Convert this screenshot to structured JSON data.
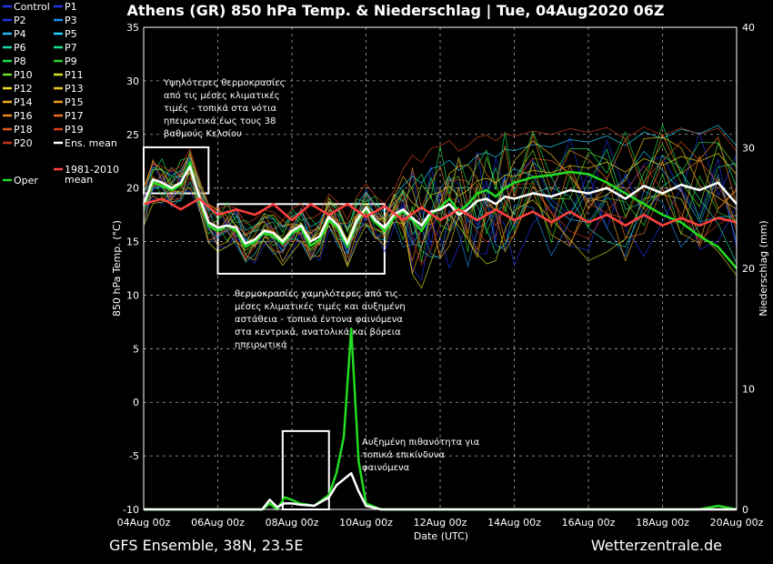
{
  "chart_data": {
    "type": "line",
    "title": "Athens  (GR)  850 hPa Temp. & Niederschlag | Tue, 04Aug2020 06Z",
    "ylabel": "850 hPa Temp. (°C)",
    "y2label": "Niederschlag (mm)",
    "xlabel": "Date (UTC)",
    "ylim": [
      -10,
      35
    ],
    "y2lim": [
      0,
      40
    ],
    "xlim": [
      0,
      16
    ],
    "grid": true,
    "legend_position": "left",
    "yticks": [
      35,
      30,
      25,
      20,
      15,
      10,
      5,
      0,
      -5,
      -10
    ],
    "y2ticks": [
      40,
      30,
      20,
      10,
      0
    ],
    "xticks": [
      {
        "x": 0,
        "label": "04Aug 00z"
      },
      {
        "x": 2,
        "label": "06Aug 00z"
      },
      {
        "x": 4,
        "label": "08Aug 00z"
      },
      {
        "x": 6,
        "label": "10Aug 00z"
      },
      {
        "x": 8,
        "label": "12Aug 00z"
      },
      {
        "x": 10,
        "label": "14Aug 00z"
      },
      {
        "x": 12,
        "label": "16Aug 00z"
      },
      {
        "x": 14,
        "label": "18Aug 00z"
      },
      {
        "x": 16,
        "label": "20Aug 00z"
      }
    ],
    "legend": [
      {
        "name": "Control",
        "color": "#1f35e6"
      },
      {
        "name": "P1",
        "color": "#1f35e6"
      },
      {
        "name": "P2",
        "color": "#1f35e6"
      },
      {
        "name": "P3",
        "color": "#1f8cf0"
      },
      {
        "name": "P4",
        "color": "#1fb8ff"
      },
      {
        "name": "P5",
        "color": "#1fd8ff"
      },
      {
        "name": "P6",
        "color": "#1fd8b0"
      },
      {
        "name": "P7",
        "color": "#1fe090"
      },
      {
        "name": "P8",
        "color": "#1fe050"
      },
      {
        "name": "P9",
        "color": "#2ad02a"
      },
      {
        "name": "P10",
        "color": "#6ae02a"
      },
      {
        "name": "P11",
        "color": "#d8e01f"
      },
      {
        "name": "P12",
        "color": "#f0e01f"
      },
      {
        "name": "P13",
        "color": "#f0c81f"
      },
      {
        "name": "P14",
        "color": "#f0b01f"
      },
      {
        "name": "P15",
        "color": "#f09a1f"
      },
      {
        "name": "P16",
        "color": "#f0861f"
      },
      {
        "name": "P17",
        "color": "#f0701f"
      },
      {
        "name": "P18",
        "color": "#e0581f"
      },
      {
        "name": "P19",
        "color": "#d8441f"
      },
      {
        "name": "P20",
        "color": "#c8341f"
      },
      {
        "name": "Ens. mean",
        "color": "#ffffff"
      },
      {
        "name": "Oper",
        "color": "#22dd22"
      },
      {
        "name": "1981-2010 mean",
        "color": "#ff4040"
      }
    ],
    "series": [
      {
        "name": "Oper",
        "color": "#22dd22",
        "x": [
          0,
          0.25,
          0.5,
          0.75,
          1,
          1.25,
          1.5,
          1.75,
          2,
          2.25,
          2.5,
          2.75,
          3,
          3.25,
          3.5,
          3.75,
          4,
          4.25,
          4.5,
          4.75,
          5,
          5.25,
          5.5,
          5.75,
          6,
          6.25,
          6.5,
          6.75,
          7,
          7.25,
          7.5,
          7.75,
          8,
          8.25,
          8.5,
          8.75,
          9,
          9.25,
          9.5,
          9.75,
          10,
          10.5,
          11,
          11.5,
          12,
          12.5,
          13,
          13.5,
          14,
          14.5,
          15,
          15.5,
          16
        ],
        "values": [
          18.3,
          20.5,
          20.2,
          19.8,
          20.3,
          22.4,
          19.0,
          16.5,
          16.0,
          16.5,
          16.0,
          14.5,
          15.0,
          15.8,
          15.5,
          14.8,
          15.8,
          16.2,
          14.6,
          15.2,
          17.0,
          16.2,
          14.5,
          16.8,
          18.0,
          16.8,
          16.0,
          17.2,
          17.8,
          17.0,
          16.0,
          17.5,
          18.2,
          19.0,
          17.8,
          18.5,
          19.5,
          19.8,
          19.2,
          20.0,
          20.5,
          21.0,
          21.2,
          21.5,
          21.3,
          20.5,
          19.5,
          18.5,
          17.5,
          16.8,
          15.5,
          14.5,
          12.5
        ]
      },
      {
        "name": "Ens. mean",
        "color": "#ffffff",
        "x": [
          0,
          0.25,
          0.5,
          0.75,
          1,
          1.25,
          1.5,
          1.75,
          2,
          2.25,
          2.5,
          2.75,
          3,
          3.25,
          3.5,
          3.75,
          4,
          4.25,
          4.5,
          4.75,
          5,
          5.25,
          5.5,
          5.75,
          6,
          6.25,
          6.5,
          6.75,
          7,
          7.25,
          7.5,
          7.75,
          8,
          8.25,
          8.5,
          8.75,
          9,
          9.25,
          9.5,
          9.75,
          10,
          10.5,
          11,
          11.5,
          12,
          12.5,
          13,
          13.5,
          14,
          14.5,
          15,
          15.5,
          16
        ],
        "values": [
          18.5,
          20.8,
          20.5,
          20.0,
          20.5,
          22.0,
          19.2,
          16.8,
          16.3,
          16.5,
          16.3,
          14.8,
          15.2,
          16.0,
          15.8,
          15.0,
          16.0,
          16.5,
          15.0,
          15.5,
          17.3,
          16.5,
          14.8,
          17.0,
          18.2,
          17.0,
          16.3,
          17.5,
          18.0,
          17.2,
          16.5,
          17.8,
          18.0,
          18.5,
          17.5,
          18.0,
          18.8,
          19.0,
          18.5,
          19.2,
          19.0,
          19.5,
          19.2,
          19.8,
          19.5,
          20.0,
          19.0,
          20.2,
          19.5,
          20.3,
          19.8,
          20.5,
          18.5
        ]
      },
      {
        "name": "1981-2010 mean",
        "color": "#ff4040",
        "x": [
          0,
          0.5,
          1,
          1.5,
          2,
          2.5,
          3,
          3.5,
          4,
          4.5,
          5,
          5.5,
          6,
          6.5,
          7,
          7.5,
          8,
          8.5,
          9,
          9.5,
          10,
          10.5,
          11,
          11.5,
          12,
          12.5,
          13,
          13.5,
          14,
          14.5,
          15,
          15.5,
          16
        ],
        "values": [
          18.5,
          19.0,
          18.0,
          19.0,
          17.5,
          18.0,
          17.5,
          18.5,
          17.0,
          18.5,
          17.5,
          18.5,
          17.3,
          18.3,
          17.0,
          18.2,
          17.0,
          18.0,
          17.0,
          18.0,
          17.0,
          17.8,
          16.8,
          17.8,
          16.8,
          17.5,
          16.5,
          17.5,
          16.5,
          17.2,
          16.5,
          17.2,
          16.8
        ]
      }
    ],
    "precip_series": [
      {
        "name": "Oper",
        "color": "#22dd22",
        "x": [
          0,
          3.2,
          3.4,
          3.6,
          3.8,
          4.0,
          4.2,
          4.6,
          5.0,
          5.2,
          5.4,
          5.6,
          5.8,
          6.0,
          6.4,
          7,
          8,
          10,
          12,
          14,
          15,
          15.5,
          16
        ],
        "values": [
          0,
          0,
          0.5,
          0,
          1.0,
          0.8,
          0.5,
          0.3,
          1.2,
          3.0,
          6.0,
          15.0,
          4.0,
          0.5,
          0,
          0,
          0,
          0,
          0,
          0,
          0,
          0.3,
          0
        ]
      },
      {
        "name": "Ens. mean",
        "color": "#ffffff",
        "x": [
          0,
          3.2,
          3.4,
          3.6,
          3.8,
          4.0,
          4.2,
          4.6,
          5.0,
          5.2,
          5.4,
          5.6,
          5.8,
          6.0,
          6.4,
          7,
          8,
          10,
          12,
          14,
          16
        ],
        "values": [
          0,
          0,
          0.8,
          0.2,
          0.5,
          0.5,
          0.4,
          0.3,
          1.0,
          2.0,
          2.5,
          3.0,
          1.5,
          0.3,
          0,
          0,
          0,
          0,
          0,
          0,
          0
        ]
      }
    ],
    "annotations": [
      {
        "lines": [
          "Υψηλότερες θερμοκρασίες",
          "από τις μέσες κλιματικές",
          "τιμές - τοπικά στα νότια",
          "ηπειρωτικά έως τους 38",
          "βαθμούς Κελσίου"
        ]
      },
      {
        "lines": [
          "θερμοκρασίες χαμηλότερες από τις",
          "μέσες κλιματικές τιμές και αυξημένη",
          "αστάθεια - τοπικά έντονα φαινόμενα",
          "στα κεντρικά, ανατολικά και βόρεια",
          "ηπειρωτικά"
        ]
      },
      {
        "lines": [
          "Αυξημένη πιθανότητα για",
          "τοπικά επικίνδυνα",
          "φαινόμενα"
        ]
      }
    ],
    "boxes": [
      {
        "x0": 0,
        "x1": 1.75,
        "y0": 19.5,
        "y1": 23.8
      },
      {
        "x0": 2,
        "x1": 6.5,
        "y0": 12.0,
        "y1": 18.5
      },
      {
        "x0": 3.75,
        "x1": 5.0,
        "y0": 0,
        "y1": 6.5
      }
    ]
  },
  "footer": {
    "left": "GFS Ensemble, 38N, 23.5E",
    "right": "Wetterzentrale.de"
  }
}
